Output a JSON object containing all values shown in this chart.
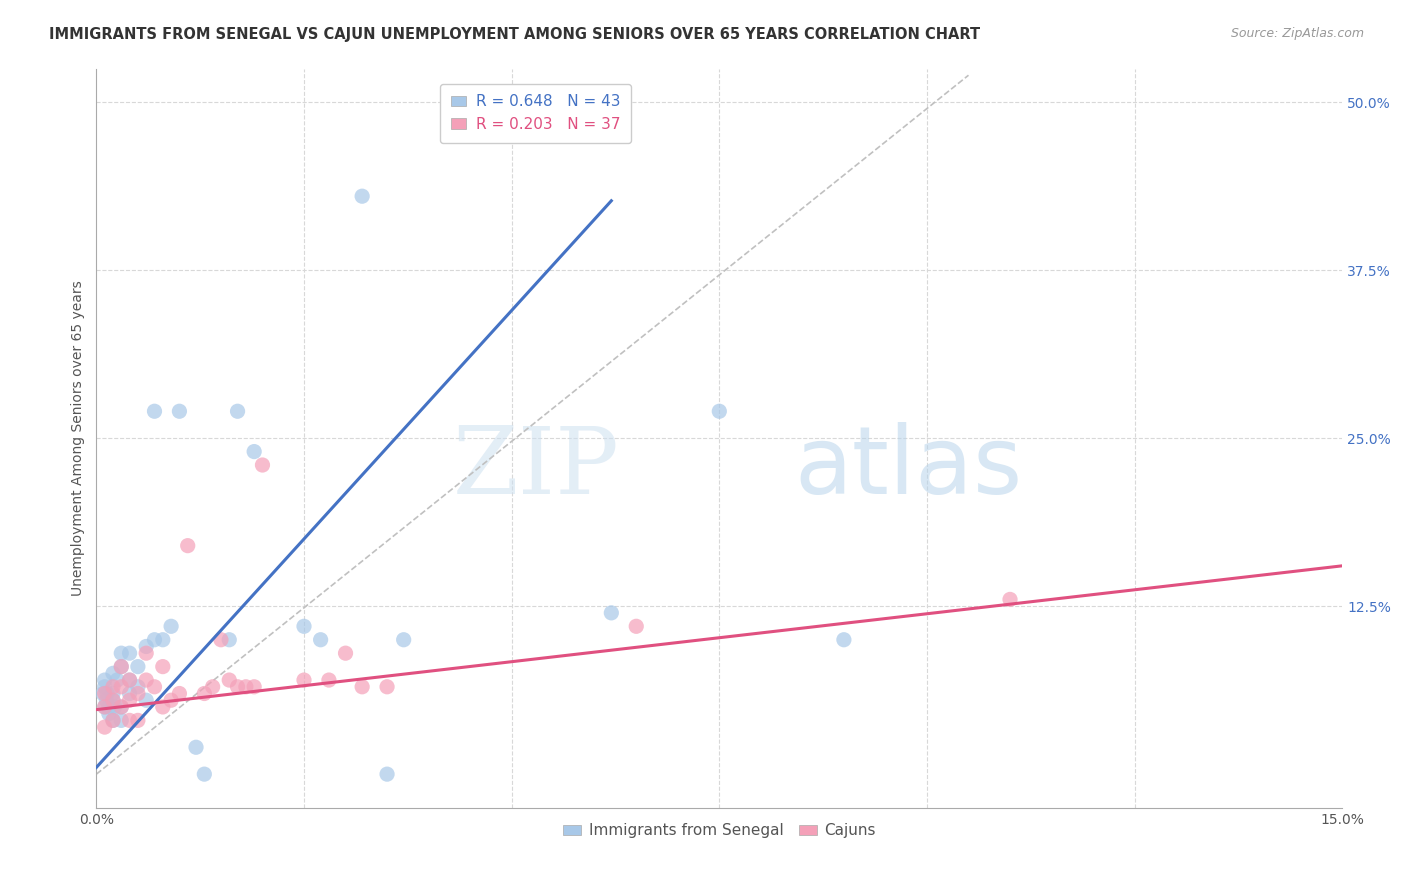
{
  "title": "IMMIGRANTS FROM SENEGAL VS CAJUN UNEMPLOYMENT AMONG SENIORS OVER 65 YEARS CORRELATION CHART",
  "source": "Source: ZipAtlas.com",
  "ylabel": "Unemployment Among Seniors over 65 years",
  "right_yticks": [
    "50.0%",
    "37.5%",
    "25.0%",
    "12.5%"
  ],
  "right_ytick_vals": [
    0.5,
    0.375,
    0.25,
    0.125
  ],
  "xmin": 0.0,
  "xmax": 0.15,
  "ymin": -0.025,
  "ymax": 0.525,
  "legend_blue_R": "R = 0.648",
  "legend_blue_N": "N = 43",
  "legend_pink_R": "R = 0.203",
  "legend_pink_N": "N = 37",
  "legend_label_blue": "Immigrants from Senegal",
  "legend_label_pink": "Cajuns",
  "blue_color": "#a8c8e8",
  "pink_color": "#f4a0b8",
  "blue_line_color": "#4472C4",
  "pink_line_color": "#e05080",
  "diagonal_color": "#c0c0c0",
  "watermark_zip": "ZIP",
  "watermark_atlas": "atlas",
  "grid_color": "#d8d8d8",
  "background_color": "#ffffff",
  "title_fontsize": 10.5,
  "axis_label_fontsize": 10,
  "tick_fontsize": 10,
  "legend_fontsize": 11,
  "blue_scatter_x": [
    0.0008,
    0.001,
    0.001,
    0.001,
    0.0012,
    0.0013,
    0.0015,
    0.0015,
    0.002,
    0.002,
    0.002,
    0.002,
    0.0022,
    0.0025,
    0.003,
    0.003,
    0.003,
    0.003,
    0.004,
    0.004,
    0.004,
    0.005,
    0.005,
    0.006,
    0.006,
    0.007,
    0.007,
    0.008,
    0.009,
    0.01,
    0.012,
    0.013,
    0.016,
    0.017,
    0.019,
    0.025,
    0.027,
    0.032,
    0.035,
    0.037,
    0.062,
    0.075,
    0.09
  ],
  "blue_scatter_y": [
    0.06,
    0.05,
    0.065,
    0.07,
    0.055,
    0.06,
    0.045,
    0.05,
    0.04,
    0.055,
    0.06,
    0.075,
    0.05,
    0.07,
    0.04,
    0.05,
    0.08,
    0.09,
    0.06,
    0.07,
    0.09,
    0.065,
    0.08,
    0.055,
    0.095,
    0.1,
    0.27,
    0.1,
    0.11,
    0.27,
    0.02,
    0.0,
    0.1,
    0.27,
    0.24,
    0.11,
    0.1,
    0.43,
    0.0,
    0.1,
    0.12,
    0.27,
    0.1
  ],
  "pink_scatter_x": [
    0.001,
    0.001,
    0.001,
    0.002,
    0.002,
    0.002,
    0.003,
    0.003,
    0.003,
    0.004,
    0.004,
    0.004,
    0.005,
    0.005,
    0.006,
    0.006,
    0.007,
    0.008,
    0.008,
    0.009,
    0.01,
    0.011,
    0.013,
    0.014,
    0.015,
    0.016,
    0.017,
    0.018,
    0.019,
    0.02,
    0.025,
    0.028,
    0.03,
    0.032,
    0.035,
    0.065,
    0.11
  ],
  "pink_scatter_y": [
    0.035,
    0.05,
    0.06,
    0.04,
    0.055,
    0.065,
    0.05,
    0.065,
    0.08,
    0.04,
    0.055,
    0.07,
    0.04,
    0.06,
    0.07,
    0.09,
    0.065,
    0.05,
    0.08,
    0.055,
    0.06,
    0.17,
    0.06,
    0.065,
    0.1,
    0.07,
    0.065,
    0.065,
    0.065,
    0.23,
    0.07,
    0.07,
    0.09,
    0.065,
    0.065,
    0.11,
    0.13
  ],
  "blue_line_x": [
    0.0,
    0.062
  ],
  "blue_line_y_intercept": 0.005,
  "blue_line_slope": 6.8,
  "pink_line_x": [
    0.0,
    0.15
  ],
  "pink_line_y_at_0": 0.048,
  "pink_line_y_at_015": 0.155
}
